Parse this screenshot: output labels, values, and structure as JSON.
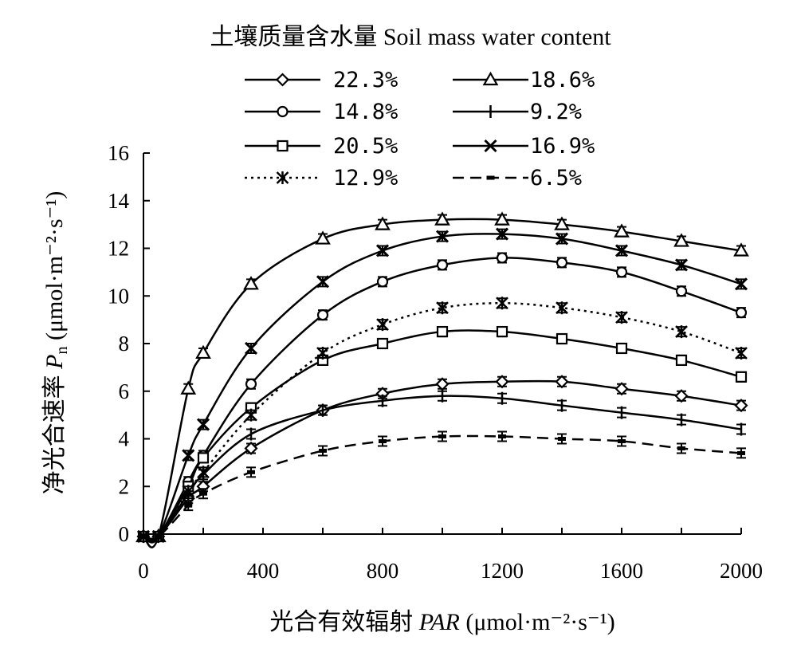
{
  "chart_data": {
    "type": "line",
    "legend_title": "土壤质量含水量 Soil mass water content",
    "xlabel": "光合有效辐射 PAR (μmol·m⁻²·s⁻¹)",
    "ylabel": "净光合速率 Pn (μmol·m⁻²·s⁻¹)",
    "xlim": [
      0,
      2000
    ],
    "ylim": [
      0,
      16
    ],
    "xticks": [
      "0",
      "400",
      "800",
      "1200",
      "1600",
      "2000"
    ],
    "yticks": [
      "0",
      "2",
      "4",
      "6",
      "8",
      "10",
      "12",
      "14",
      "16"
    ],
    "grid": false,
    "legend_position": "top",
    "x": [
      0,
      50,
      150,
      200,
      360,
      600,
      800,
      1000,
      1200,
      1400,
      1600,
      1800,
      2000
    ],
    "series": [
      {
        "name": "22.3%",
        "marker": "diamond",
        "dash": "solid",
        "values": [
          -0.1,
          -0.1,
          1.5,
          2.0,
          3.6,
          5.2,
          5.9,
          6.3,
          6.4,
          6.4,
          6.1,
          5.8,
          5.4
        ]
      },
      {
        "name": "18.6%",
        "marker": "triangle",
        "dash": "solid",
        "values": [
          -0.1,
          -0.1,
          6.1,
          7.6,
          10.5,
          12.4,
          13.0,
          13.2,
          13.2,
          13.0,
          12.7,
          12.3,
          11.9
        ]
      },
      {
        "name": "14.8%",
        "marker": "circle",
        "dash": "solid",
        "values": [
          -0.1,
          -0.1,
          2.2,
          3.3,
          6.3,
          9.2,
          10.6,
          11.3,
          11.6,
          11.4,
          11.0,
          10.2,
          9.3
        ]
      },
      {
        "name": "9.2%",
        "marker": "plus",
        "dash": "solid",
        "values": [
          -0.1,
          -0.1,
          1.7,
          2.5,
          4.2,
          5.2,
          5.6,
          5.8,
          5.7,
          5.4,
          5.1,
          4.8,
          4.4
        ]
      },
      {
        "name": "20.5%",
        "marker": "square",
        "dash": "solid",
        "values": [
          -0.1,
          -0.1,
          2.0,
          3.2,
          5.3,
          7.3,
          8.0,
          8.5,
          8.5,
          8.2,
          7.8,
          7.3,
          6.6
        ]
      },
      {
        "name": "16.9%",
        "marker": "x",
        "dash": "solid",
        "values": [
          -0.1,
          -0.1,
          3.3,
          4.6,
          7.8,
          10.6,
          11.9,
          12.5,
          12.6,
          12.4,
          11.9,
          11.3,
          10.5
        ]
      },
      {
        "name": "12.9%",
        "marker": "star",
        "dash": "dotted",
        "values": [
          -0.1,
          -0.1,
          1.8,
          2.6,
          5.0,
          7.6,
          8.8,
          9.5,
          9.7,
          9.5,
          9.1,
          8.5,
          7.6
        ]
      },
      {
        "name": "6.5%",
        "marker": "dash",
        "dash": "dashed",
        "values": [
          -0.1,
          -0.1,
          1.2,
          1.7,
          2.6,
          3.5,
          3.9,
          4.1,
          4.1,
          4.0,
          3.9,
          3.6,
          3.4
        ]
      }
    ]
  }
}
